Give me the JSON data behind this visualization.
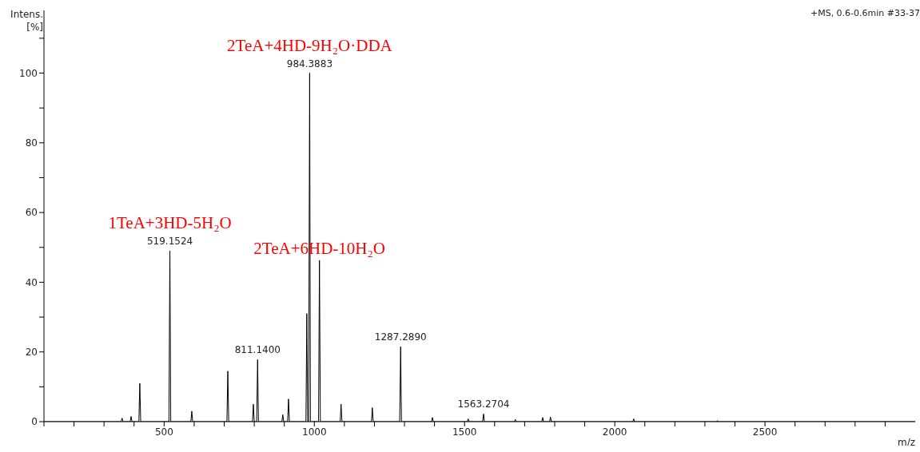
{
  "chart_data": {
    "type": "line",
    "xlabel": "m/z",
    "ylabel": "Intens. [%]",
    "xlim": [
      100,
      3000
    ],
    "ylim": [
      0,
      118
    ],
    "xticks": [
      {
        "value": 100,
        "label": null
      },
      {
        "value": 200,
        "label": null
      },
      {
        "value": 300,
        "label": null
      },
      {
        "value": 400,
        "label": null
      },
      500,
      {
        "value": 600,
        "label": null
      },
      {
        "value": 700,
        "label": null
      },
      {
        "value": 800,
        "label": null
      },
      {
        "value": 900,
        "label": null
      },
      1000,
      {
        "value": 1100,
        "label": null
      },
      {
        "value": 1200,
        "label": null
      },
      {
        "value": 1300,
        "label": null
      },
      {
        "value": 1400,
        "label": null
      },
      1500,
      {
        "value": 1600,
        "label": null
      },
      {
        "value": 1700,
        "label": null
      },
      {
        "value": 1800,
        "label": null
      },
      {
        "value": 1900,
        "label": null
      },
      2000,
      {
        "value": 2100,
        "label": null
      },
      {
        "value": 2200,
        "label": null
      },
      {
        "value": 2300,
        "label": null
      },
      {
        "value": 2400,
        "label": null
      },
      2500,
      {
        "value": 2600,
        "label": null
      },
      {
        "value": 2700,
        "label": null
      },
      {
        "value": 2800,
        "label": null
      },
      {
        "value": 2900,
        "label": null
      }
    ],
    "yticks": [
      0,
      {
        "value": 10,
        "label": null
      },
      20,
      {
        "value": 30,
        "label": null
      },
      40,
      {
        "value": 50,
        "label": null
      },
      60,
      {
        "value": 70,
        "label": null
      },
      80,
      {
        "value": 90,
        "label": null
      },
      100,
      {
        "value": 110,
        "label": null
      }
    ],
    "series": [
      {
        "color": "#000000",
        "x": [
          100,
          357,
          360,
          363,
          387,
          390,
          393,
          416,
          419,
          422,
          516,
          519.1524,
          522,
          589,
          592,
          595,
          709,
          712,
          715,
          794,
          797,
          800,
          808,
          811.14,
          814,
          892,
          895,
          898,
          911,
          914,
          917,
          972,
          975,
          978,
          981,
          984.3883,
          987,
          1014,
          1017,
          1020,
          1086,
          1089,
          1092,
          1190,
          1193,
          1196,
          1284,
          1287.289,
          1290,
          1390,
          1393,
          1396,
          1509,
          1512,
          1515,
          1560,
          1563.2704,
          1566,
          1666,
          1669,
          1672,
          1757,
          1760,
          1763,
          1783,
          1786,
          1789,
          2060,
          2063,
          2066,
          2339,
          2342,
          2345,
          3000
        ],
        "values": [
          0,
          0,
          1,
          0,
          0,
          1.5,
          0,
          0,
          11,
          0,
          0,
          49,
          0,
          0,
          3,
          0,
          0,
          14.5,
          0,
          0,
          5,
          0,
          0,
          17.8,
          0,
          0,
          2,
          0,
          0,
          6.5,
          0,
          0,
          31,
          0,
          0,
          100,
          0,
          0,
          46.3,
          0,
          0,
          5,
          0,
          0,
          4,
          0,
          0,
          21.5,
          0,
          0,
          1.2,
          0,
          0,
          0.8,
          0,
          0,
          2.2,
          0,
          0,
          0.6,
          0,
          0,
          1.2,
          0,
          0,
          1.3,
          0,
          0,
          0.8,
          0,
          0,
          0.3,
          0,
          0
        ],
        "line_style": "solid"
      }
    ],
    "annotations": [
      "+MS, 0.6-0.6min #33-37",
      {
        "text": "519.1524",
        "x": 519.1524,
        "y": 49
      },
      {
        "text": "811.1400",
        "x": 811.14,
        "y": 17.8
      },
      {
        "text": "984.3883",
        "x": 984.3883,
        "y": 100
      },
      {
        "text": "1287.2890",
        "x": 1287.289,
        "y": 21.5
      },
      {
        "text": "1563.2704",
        "x": 1563.2704,
        "y": 2.2
      },
      {
        "text": "2TeA+4HD-9H₂O·DDA",
        "x": 984.3883,
        "y": 100
      },
      {
        "text": "1TeA+3HD-5H₂O",
        "x": 519.1524,
        "y": 49
      },
      {
        "text": "2TeA+6HD-10H₂O",
        "x": 1017,
        "y": 46.3
      }
    ]
  }
}
